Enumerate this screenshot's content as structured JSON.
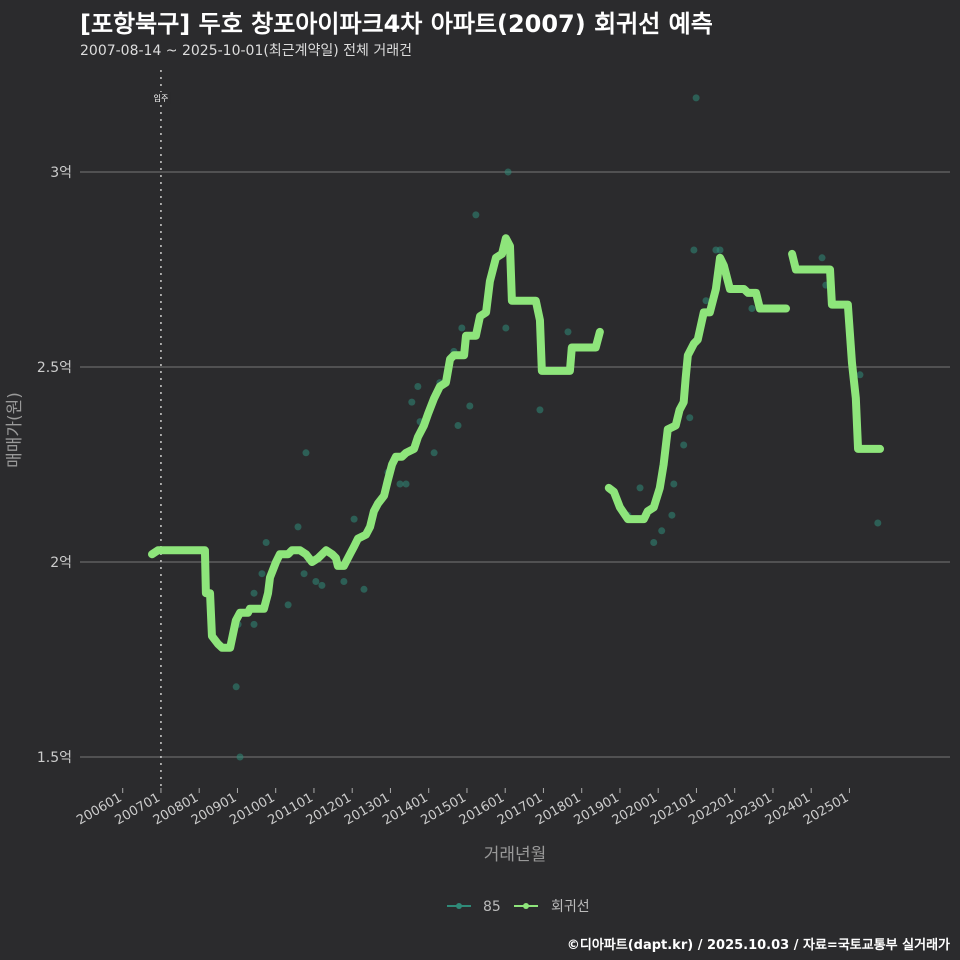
{
  "header": {
    "title": "[포항북구] 두호 창포아이파크4차 아파트(2007) 회귀선 예측",
    "subtitle": "2007-08-14 ~ 2025-10-01(최근계약일) 전체 거래건"
  },
  "footer": "©디아파트(dapt.kr) / 2025.10.03 / 자료=국토교통부 실거래가",
  "colors": {
    "background": "#2b2b2d",
    "regression": "#8ee57b",
    "scatter": "#2f8a78"
  },
  "chart_data": {
    "type": "scatter+line",
    "xlabel": "거래년월",
    "ylabel": "매매가(원)",
    "x_unit": "months since 200601",
    "ylim": [
      1.42,
      3.28
    ],
    "xlim": [
      -13,
      255
    ],
    "yticks": [
      {
        "v": 1.5,
        "label": "1.5억"
      },
      {
        "v": 2,
        "label": "2억"
      },
      {
        "v": 2.5,
        "label": "2.5억"
      },
      {
        "v": 3,
        "label": "3억"
      }
    ],
    "xticks": [
      "200601",
      "200701",
      "200801",
      "200901",
      "201001",
      "201101",
      "201201",
      "201301",
      "201401",
      "201501",
      "201601",
      "201701",
      "201801",
      "201901",
      "202001",
      "202101",
      "202201",
      "202301",
      "202401",
      "202501"
    ],
    "annotation": {
      "label": "입주",
      "x": 12
    },
    "legend": [
      {
        "name": "85",
        "key": "scatter"
      },
      {
        "name": "회귀선",
        "key": "regression"
      }
    ],
    "scatter": [
      [
        35.6,
        1.68
      ],
      [
        36.8,
        1.5
      ],
      [
        179.9,
        3.19
      ],
      [
        120.9,
        3.0
      ],
      [
        110.8,
        2.89
      ],
      [
        187.4,
        2.8
      ],
      [
        186.1,
        2.8
      ],
      [
        179.2,
        2.8
      ],
      [
        219.4,
        2.78
      ],
      [
        236.9,
        2.1
      ],
      [
        130.9,
        2.39
      ],
      [
        139.7,
        2.59
      ],
      [
        108.9,
        2.4
      ],
      [
        105.2,
        2.35
      ],
      [
        106.4,
        2.6
      ],
      [
        97.7,
        2.28
      ],
      [
        57.5,
        2.28
      ],
      [
        55.0,
        2.09
      ],
      [
        72.6,
        2.11
      ],
      [
        75.7,
        1.93
      ],
      [
        51.9,
        1.89
      ],
      [
        45.0,
        2.05
      ],
      [
        60.6,
        1.95
      ],
      [
        69.4,
        1.95
      ],
      [
        56.9,
        1.97
      ],
      [
        62.5,
        1.94
      ],
      [
        36.2,
        1.84
      ],
      [
        41.2,
        1.84
      ],
      [
        41.2,
        1.92
      ],
      [
        43.7,
        1.97
      ],
      [
        158.5,
        2.12
      ],
      [
        162.3,
        2.19
      ],
      [
        166.6,
        2.05
      ],
      [
        169.1,
        2.08
      ],
      [
        172.3,
        2.12
      ],
      [
        172.9,
        2.2
      ],
      [
        176.0,
        2.3
      ],
      [
        177.9,
        2.37
      ],
      [
        183.0,
        2.67
      ],
      [
        197.4,
        2.65
      ],
      [
        231.3,
        2.48
      ],
      [
        220.6,
        2.71
      ],
      [
        120.2,
        2.6
      ],
      [
        87.0,
        2.2
      ],
      [
        88.9,
        2.2
      ],
      [
        90.7,
        2.41
      ],
      [
        92.6,
        2.45
      ],
      [
        93.3,
        2.36
      ],
      [
        103.9,
        2.54
      ],
      [
        99.5,
        2.46
      ],
      [
        83.2,
        2.23
      ]
    ],
    "regression": [
      [
        [
          9.2,
          2.02
        ],
        [
          11.1,
          2.03
        ],
        [
          25.8,
          2.03
        ],
        [
          26.1,
          1.92
        ],
        [
          27.4,
          1.92
        ],
        [
          28.0,
          1.81
        ],
        [
          29.9,
          1.79
        ],
        [
          31.2,
          1.78
        ],
        [
          33.7,
          1.78
        ],
        [
          35.5,
          1.85
        ],
        [
          36.8,
          1.87
        ],
        [
          39.3,
          1.87
        ],
        [
          39.9,
          1.88
        ],
        [
          44.3,
          1.88
        ],
        [
          45.6,
          1.92
        ],
        [
          46.2,
          1.96
        ],
        [
          48.1,
          2.0
        ],
        [
          49.3,
          2.02
        ],
        [
          51.9,
          2.02
        ],
        [
          53.1,
          2.03
        ],
        [
          55.6,
          2.03
        ],
        [
          57.5,
          2.02
        ],
        [
          59.4,
          2.0
        ],
        [
          61.3,
          2.01
        ],
        [
          63.8,
          2.03
        ],
        [
          65.7,
          2.02
        ],
        [
          66.9,
          2.01
        ],
        [
          67.5,
          1.99
        ],
        [
          69.4,
          1.99
        ],
        [
          71.3,
          2.02
        ],
        [
          72.6,
          2.04
        ],
        [
          73.8,
          2.06
        ],
        [
          76.3,
          2.07
        ],
        [
          77.6,
          2.09
        ],
        [
          78.8,
          2.13
        ],
        [
          80.1,
          2.15
        ],
        [
          82.0,
          2.17
        ],
        [
          83.2,
          2.21
        ],
        [
          84.5,
          2.25
        ],
        [
          85.7,
          2.27
        ],
        [
          87.6,
          2.27
        ],
        [
          88.9,
          2.28
        ],
        [
          91.4,
          2.29
        ],
        [
          92.6,
          2.32
        ],
        [
          94.5,
          2.35
        ],
        [
          95.8,
          2.38
        ],
        [
          97.7,
          2.42
        ],
        [
          99.5,
          2.45
        ],
        [
          101.4,
          2.46
        ],
        [
          102.7,
          2.52
        ],
        [
          103.9,
          2.53
        ],
        [
          107.1,
          2.53
        ],
        [
          107.7,
          2.58
        ],
        [
          110.8,
          2.58
        ],
        [
          112.1,
          2.63
        ],
        [
          114.0,
          2.64
        ],
        [
          115.2,
          2.72
        ],
        [
          117.1,
          2.78
        ],
        [
          119.0,
          2.79
        ],
        [
          120.2,
          2.83
        ],
        [
          121.5,
          2.81
        ],
        [
          122.1,
          2.67
        ],
        [
          129.6,
          2.67
        ],
        [
          130.9,
          2.62
        ],
        [
          131.5,
          2.49
        ],
        [
          140.3,
          2.49
        ],
        [
          140.9,
          2.55
        ],
        [
          148.4,
          2.55
        ],
        [
          149.7,
          2.59
        ]
      ],
      [
        [
          152.5,
          2.19
        ],
        [
          154.1,
          2.18
        ],
        [
          156.0,
          2.14
        ],
        [
          158.5,
          2.11
        ],
        [
          159.7,
          2.11
        ],
        [
          163.5,
          2.11
        ],
        [
          164.7,
          2.13
        ],
        [
          166.6,
          2.14
        ],
        [
          168.5,
          2.19
        ],
        [
          169.7,
          2.25
        ],
        [
          171.0,
          2.34
        ],
        [
          173.5,
          2.35
        ],
        [
          174.7,
          2.39
        ],
        [
          176.0,
          2.41
        ],
        [
          176.6,
          2.47
        ],
        [
          177.3,
          2.53
        ],
        [
          179.2,
          2.56
        ],
        [
          180.4,
          2.57
        ],
        [
          182.3,
          2.64
        ],
        [
          184.2,
          2.64
        ],
        [
          186.1,
          2.7
        ],
        [
          187.4,
          2.78
        ],
        [
          188.6,
          2.76
        ],
        [
          190.5,
          2.7
        ],
        [
          194.9,
          2.7
        ],
        [
          196.2,
          2.69
        ],
        [
          198.7,
          2.69
        ],
        [
          199.9,
          2.65
        ],
        [
          208.1,
          2.65
        ]
      ],
      [
        [
          210.0,
          2.79
        ],
        [
          211.2,
          2.75
        ],
        [
          221.9,
          2.75
        ],
        [
          222.5,
          2.66
        ],
        [
          227.5,
          2.66
        ],
        [
          228.8,
          2.51
        ],
        [
          230.0,
          2.42
        ],
        [
          230.7,
          2.29
        ],
        [
          237.6,
          2.29
        ]
      ]
    ]
  }
}
